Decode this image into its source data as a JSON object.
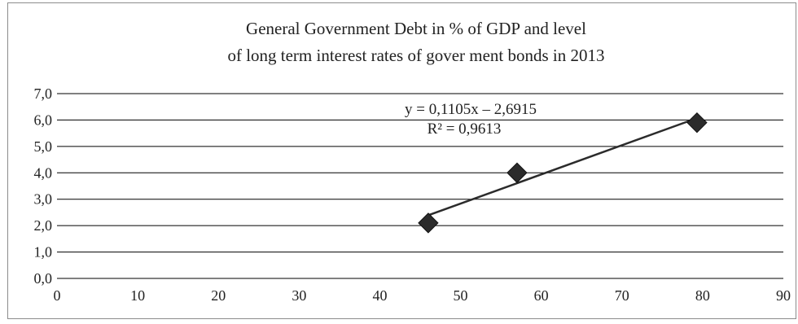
{
  "chart_data": {
    "type": "scatter",
    "title_lines": [
      "General Government Debt in % of GDP and level",
      "of long term interest rates of gover  ment bonds in 2013"
    ],
    "xlabel": "",
    "ylabel": "",
    "xlim": [
      0,
      90
    ],
    "ylim": [
      0,
      7
    ],
    "x_ticks": [
      "0",
      "10",
      "20",
      "30",
      "40",
      "50",
      "60",
      "70",
      "80",
      "90"
    ],
    "y_ticks": [
      "0,0",
      "1,0",
      "2,0",
      "3,0",
      "4,0",
      "5,0",
      "6,0",
      "7,0"
    ],
    "grid": "horizontal",
    "legend": "none",
    "series": [
      {
        "points": [
          {
            "x": 46,
            "y": 2.1
          },
          {
            "x": 57,
            "y": 4.0
          },
          {
            "x": 79.3,
            "y": 5.9
          }
        ]
      }
    ],
    "trendline": {
      "type": "linear",
      "x_range": [
        46,
        79.3
      ],
      "equation": "y = 0,1105x – 2,6915",
      "r_squared": "R² = 0,9613"
    },
    "colors": {
      "marker": "#2b2b2b",
      "line": "#2b2b2b",
      "grid": "#000000",
      "border": "#7f7f7f"
    }
  }
}
